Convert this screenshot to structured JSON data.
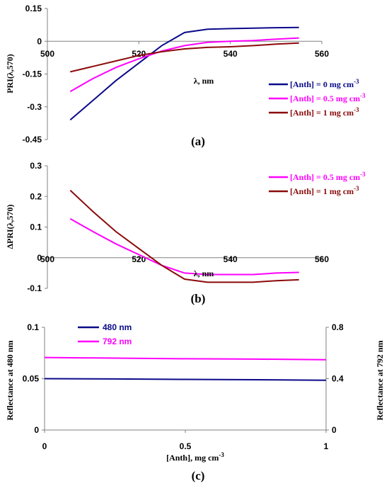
{
  "chart_data": [
    {
      "panel_label": "(a)",
      "type": "line",
      "xlabel": "λ, nm",
      "ylabel": "PRI(λ,570)",
      "xlim": [
        500,
        560
      ],
      "ylim": [
        -0.45,
        0.15
      ],
      "xticks": [
        "500",
        "520",
        "540",
        "560"
      ],
      "yticks": [
        "0.15",
        "0",
        "-0.15",
        "-0.3",
        "-0.45"
      ],
      "series": [
        {
          "name": "[Anth] = 0 mg cm⁻³",
          "color": "#0a0a8a",
          "x": [
            505,
            510,
            515,
            520,
            525,
            530,
            535,
            540,
            545,
            550,
            555
          ],
          "y": [
            -0.36,
            -0.27,
            -0.18,
            -0.1,
            -0.02,
            0.04,
            0.055,
            0.058,
            0.06,
            0.062,
            0.063
          ]
        },
        {
          "name": "[Anth] = 0.5 mg cm⁻³",
          "color": "#ff00ff",
          "x": [
            505,
            510,
            515,
            520,
            525,
            530,
            535,
            540,
            545,
            550,
            555
          ],
          "y": [
            -0.23,
            -0.17,
            -0.12,
            -0.08,
            -0.045,
            -0.02,
            -0.005,
            0.0,
            0.003,
            0.01,
            0.015
          ]
        },
        {
          "name": "[Anth] = 1 mg cm⁻³",
          "color": "#8b0a0a",
          "x": [
            505,
            510,
            515,
            520,
            525,
            530,
            535,
            540,
            545,
            550,
            555
          ],
          "y": [
            -0.14,
            -0.115,
            -0.09,
            -0.065,
            -0.048,
            -0.035,
            -0.028,
            -0.025,
            -0.02,
            -0.013,
            -0.008
          ]
        }
      ]
    },
    {
      "panel_label": "(b)",
      "type": "line",
      "xlabel": "λ, nm",
      "ylabel": "ΔPRI(λ,570)",
      "xlim": [
        500,
        560
      ],
      "ylim": [
        -0.1,
        0.3
      ],
      "xticks": [
        "500",
        "520",
        "540",
        "560"
      ],
      "yticks": [
        "0.3",
        "0.2",
        "0.1",
        "0",
        "-0.1"
      ],
      "series": [
        {
          "name": "[Anth] = 0.5 mg cm⁻³",
          "color": "#ff00ff",
          "x": [
            505,
            510,
            515,
            520,
            525,
            530,
            535,
            540,
            545,
            550,
            555
          ],
          "y": [
            0.127,
            0.085,
            0.045,
            0.01,
            -0.025,
            -0.05,
            -0.055,
            -0.055,
            -0.055,
            -0.05,
            -0.048
          ]
        },
        {
          "name": "[Anth] = 1 mg cm⁻³",
          "color": "#8b0a0a",
          "x": [
            505,
            510,
            515,
            520,
            525,
            530,
            535,
            540,
            545,
            550,
            555
          ],
          "y": [
            0.22,
            0.15,
            0.085,
            0.03,
            -0.025,
            -0.07,
            -0.08,
            -0.08,
            -0.08,
            -0.075,
            -0.072
          ]
        }
      ]
    },
    {
      "panel_label": "(c)",
      "type": "line",
      "xlabel": "[Anth], mg cm⁻³",
      "ylabel": "Reflectance at 480 nm",
      "ylabel_right": "Reflectance at 792 nm",
      "xlim": [
        0,
        1
      ],
      "ylim": [
        0,
        0.1
      ],
      "ylim_right": [
        0,
        0.8
      ],
      "xticks": [
        "0",
        "0.5",
        "1"
      ],
      "yticks": [
        "0.1",
        "0.05",
        "0"
      ],
      "yticks_right": [
        "0.8",
        "0.4",
        "0"
      ],
      "series": [
        {
          "name": "480 nm",
          "color": "#0a0a8a",
          "axis": "left",
          "x": [
            0,
            0.25,
            0.5,
            0.75,
            1
          ],
          "y": [
            0.05,
            0.0497,
            0.0493,
            0.049,
            0.0485
          ]
        },
        {
          "name": "792 nm",
          "color": "#ff00ff",
          "axis": "right",
          "x": [
            0,
            0.25,
            0.5,
            0.75,
            1
          ],
          "y": [
            0.565,
            0.56,
            0.555,
            0.552,
            0.548
          ]
        }
      ]
    }
  ]
}
